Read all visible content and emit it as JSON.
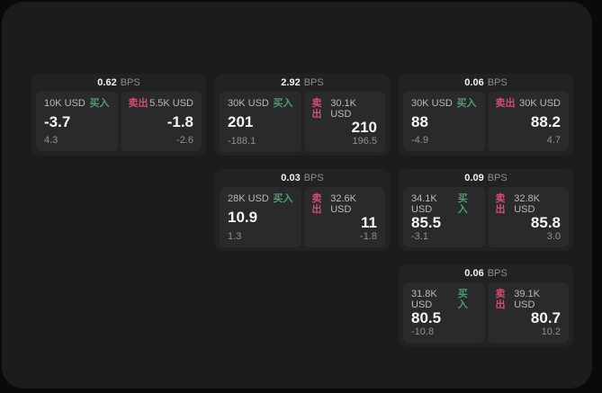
{
  "colors": {
    "buy_accent": "#45a16c",
    "sell_accent": "#cf4e71",
    "panel_bg": "#1c1c1e",
    "card_bg": "#222224",
    "pane_bg": "#2a2a2c"
  },
  "labels": {
    "bps_unit": "BPS",
    "buy_side": "买入",
    "sell_side": "卖出"
  },
  "cards": [
    {
      "col": 1,
      "row": 1,
      "bps_value": "0.62",
      "bps_unit": "BPS",
      "buy": {
        "size": "10K USD",
        "side": "买入",
        "price": "-3.7",
        "delta": "4.3"
      },
      "sell": {
        "side": "卖出",
        "size": "5.5K USD",
        "price": "-1.8",
        "delta": "-2.6"
      }
    },
    {
      "col": 2,
      "row": 1,
      "bps_value": "2.92",
      "bps_unit": "BPS",
      "buy": {
        "size": "30K USD",
        "side": "买入",
        "price": "201",
        "delta": "-188.1"
      },
      "sell": {
        "side": "卖出",
        "size": "30.1K USD",
        "price": "210",
        "delta": "196.5"
      }
    },
    {
      "col": 3,
      "row": 1,
      "bps_value": "0.06",
      "bps_unit": "BPS",
      "buy": {
        "size": "30K USD",
        "side": "买入",
        "price": "88",
        "delta": "-4.9"
      },
      "sell": {
        "side": "卖出",
        "size": "30K USD",
        "price": "88.2",
        "delta": "4.7"
      }
    },
    {
      "col": 2,
      "row": 2,
      "bps_value": "0.03",
      "bps_unit": "BPS",
      "buy": {
        "size": "28K USD",
        "side": "买入",
        "price": "10.9",
        "delta": "1.3"
      },
      "sell": {
        "side": "卖出",
        "size": "32.6K USD",
        "price": "11",
        "delta": "-1.8"
      }
    },
    {
      "col": 3,
      "row": 2,
      "bps_value": "0.09",
      "bps_unit": "BPS",
      "buy": {
        "size": "34.1K USD",
        "side": "买入",
        "price": "85.5",
        "delta": "-3.1"
      },
      "sell": {
        "side": "卖出",
        "size": "32.8K USD",
        "price": "85.8",
        "delta": "3.0"
      }
    },
    {
      "col": 3,
      "row": 3,
      "bps_value": "0.06",
      "bps_unit": "BPS",
      "buy": {
        "size": "31.8K USD",
        "side": "买入",
        "price": "80.5",
        "delta": "-10.8"
      },
      "sell": {
        "side": "卖出",
        "size": "39.1K USD",
        "price": "80.7",
        "delta": "10.2"
      }
    }
  ]
}
